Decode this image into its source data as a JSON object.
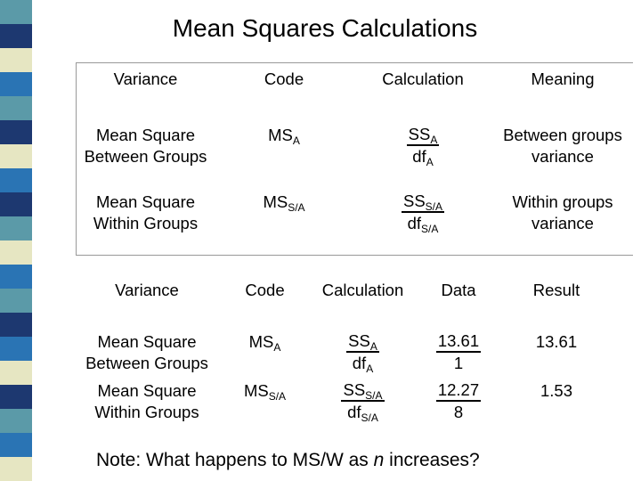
{
  "title": "Mean Squares Calculations",
  "table1": {
    "header": [
      "Variance",
      "Code",
      "Calculation",
      "Meaning"
    ],
    "rows": [
      [
        "Mean Square Between Groups",
        {
          "base": "MS",
          "sub": "A"
        },
        {
          "num": {
            "base": "SS",
            "sub": "A"
          },
          "den": {
            "base": "df",
            "sub": "A"
          }
        },
        "Between groups variance"
      ],
      [
        "Mean Square Within Groups",
        {
          "base": "MS",
          "sub": "S/A"
        },
        {
          "num": {
            "base": "SS",
            "sub": "S/A"
          },
          "den": {
            "base": "df",
            "sub": "S/A"
          }
        },
        "Within groups variance"
      ]
    ]
  },
  "table2": {
    "header": [
      "Variance",
      "Code",
      "Calculation",
      "Data",
      "Result"
    ],
    "rows": [
      [
        "Mean Square Between Groups",
        {
          "base": "MS",
          "sub": "A"
        },
        {
          "num": {
            "base": "SS",
            "sub": "A"
          },
          "den": {
            "base": "df",
            "sub": "A"
          }
        },
        {
          "num": "13.61",
          "den": "1"
        },
        "13.61"
      ],
      [
        "Mean Square Within Groups",
        {
          "base": "MS",
          "sub": "S/A"
        },
        {
          "num": {
            "base": "SS",
            "sub": "S/A"
          },
          "den": {
            "base": "df",
            "sub": "S/A"
          }
        },
        {
          "num": "12.27",
          "den": "8"
        },
        "1.53"
      ]
    ]
  },
  "note": [
    "Note:  What happens to MS/W as ",
    "n",
    " increases?"
  ]
}
